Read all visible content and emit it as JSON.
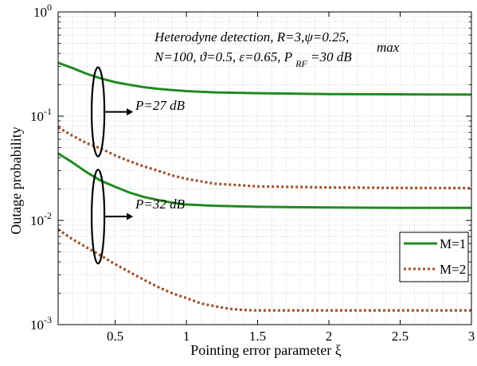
{
  "chart_data": {
    "type": "line",
    "title": "",
    "xlabel": "Pointing error parameter ξ",
    "ylabel": "Outage probability",
    "xlim": [
      0.1,
      3
    ],
    "ylim": [
      0.001,
      1
    ],
    "yscale": "log",
    "grid": true,
    "x_ticks": [
      "0.5",
      "1",
      "1.5",
      "2",
      "2.5",
      "3"
    ],
    "x_tick_values": [
      0.5,
      1,
      1.5,
      2,
      2.5,
      3
    ],
    "y_ticks": [
      {
        "base": "10",
        "exp": "0",
        "value": 1
      },
      {
        "base": "10",
        "exp": "-1",
        "value": 0.1
      },
      {
        "base": "10",
        "exp": "-2",
        "value": 0.01
      },
      {
        "base": "10",
        "exp": "-3",
        "value": 0.001
      }
    ],
    "legend_placement": "right",
    "legend": [
      {
        "label": "M=1",
        "color": "#218a21",
        "dash": "solid"
      },
      {
        "label": "M=2",
        "color": "#a0522d",
        "dash": "dotted"
      }
    ],
    "annotation_lines": [
      "Heterodyne detection, R=3,ψ=0.25,",
      "N=100, ϑ=0.5, ε=0.65, P",
      "RF",
      "max",
      "=30 dB"
    ],
    "group_labels": [
      "P=27 dB",
      "P=32 dB"
    ],
    "series": [
      {
        "name": "M=1",
        "group": "P=27 dB",
        "color": "#218a21",
        "dash": "solid",
        "x": [
          0.1,
          0.2,
          0.3,
          0.4,
          0.5,
          0.6,
          0.7,
          0.8,
          0.9,
          1.0,
          1.2,
          1.5,
          2.0,
          2.5,
          3.0
        ],
        "y": [
          0.325,
          0.29,
          0.255,
          0.23,
          0.212,
          0.2,
          0.19,
          0.183,
          0.178,
          0.174,
          0.169,
          0.166,
          0.163,
          0.162,
          0.161
        ]
      },
      {
        "name": "M=2",
        "group": "P=27 dB",
        "color": "#a0522d",
        "dash": "dotted",
        "x": [
          0.1,
          0.2,
          0.3,
          0.4,
          0.5,
          0.6,
          0.7,
          0.8,
          0.9,
          1.0,
          1.2,
          1.5,
          2.0,
          2.5,
          3.0
        ],
        "y": [
          0.078,
          0.065,
          0.055,
          0.049,
          0.042,
          0.037,
          0.033,
          0.03,
          0.027,
          0.025,
          0.0225,
          0.0212,
          0.0207,
          0.0205,
          0.0204
        ]
      },
      {
        "name": "M=1",
        "group": "P=32 dB",
        "color": "#218a21",
        "dash": "solid",
        "x": [
          0.1,
          0.2,
          0.3,
          0.4,
          0.5,
          0.6,
          0.7,
          0.8,
          0.9,
          1.0,
          1.2,
          1.5,
          2.0,
          2.5,
          3.0
        ],
        "y": [
          0.044,
          0.036,
          0.029,
          0.024,
          0.021,
          0.0185,
          0.0168,
          0.0157,
          0.0148,
          0.0142,
          0.0138,
          0.0135,
          0.0133,
          0.0132,
          0.0132
        ]
      },
      {
        "name": "M=2",
        "group": "P=32 dB",
        "color": "#a0522d",
        "dash": "dotted",
        "x": [
          0.1,
          0.2,
          0.3,
          0.4,
          0.5,
          0.6,
          0.7,
          0.8,
          0.9,
          1.0,
          1.1,
          1.2,
          1.3,
          1.4,
          1.5,
          2.0,
          2.5,
          3.0
        ],
        "y": [
          0.0082,
          0.0066,
          0.0055,
          0.0046,
          0.0038,
          0.0032,
          0.0027,
          0.0023,
          0.002,
          0.0018,
          0.0016,
          0.0015,
          0.00142,
          0.00138,
          0.00137,
          0.00137,
          0.00137,
          0.00137
        ]
      }
    ]
  }
}
